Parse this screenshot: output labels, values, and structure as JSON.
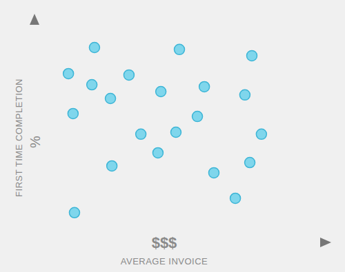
{
  "chart_data": {
    "type": "scatter",
    "x_label": "AVERAGE INVOICE",
    "y_label": "FIRST TIME COMPLETION",
    "x_axis_text": "$$$",
    "y_axis_text": "%",
    "x": [
      20.7,
      50.0,
      75.0,
      11.7,
      32.6,
      19.8,
      43.6,
      58.6,
      72.6,
      26.2,
      13.3,
      56.2,
      48.8,
      36.7,
      78.3,
      42.6,
      74.3,
      26.7,
      61.9,
      69.3,
      13.8
    ],
    "values": [
      87.9,
      87.0,
      84.2,
      76.1,
      75.5,
      71.1,
      68.0,
      70.2,
      66.5,
      64.9,
      58.1,
      56.8,
      49.7,
      48.8,
      48.8,
      40.4,
      36.0,
      34.5,
      31.4,
      19.9,
      13.4
    ],
    "xlim": [
      0,
      100
    ],
    "ylim": [
      0,
      100
    ],
    "color": "#7fd6ec",
    "marker": "circle",
    "grid": false,
    "tick_labels": false
  }
}
